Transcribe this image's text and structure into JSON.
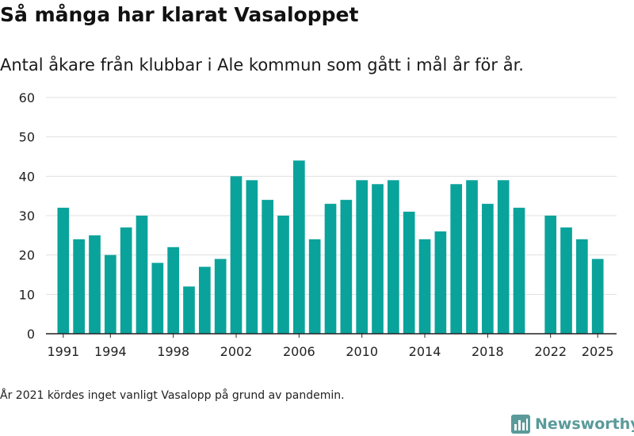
{
  "title": "Så många har klarat Vasaloppet",
  "subtitle": "Antal åkare från klubbar i Ale kommun som gått i mål år för år.",
  "footnote": "År 2021 kördes inget vanligt Vasalopp på grund av pandemin.",
  "brand": {
    "name": "Newsworthy",
    "icon": "newsworthy-logo-icon"
  },
  "colors": {
    "bar": "#0aa39b",
    "grid": "#e0e0e0",
    "axis": "#222222",
    "brand": "#5a9a9a"
  },
  "chart_data": {
    "type": "bar",
    "title": "Så många har klarat Vasaloppet",
    "subtitle": "Antal åkare från klubbar i Ale kommun som gått i mål år för år.",
    "xlabel": "",
    "ylabel": "",
    "ylim": [
      0,
      60
    ],
    "yticks": [
      0,
      10,
      20,
      30,
      40,
      50,
      60
    ],
    "xticks": [
      1991,
      1994,
      1998,
      2002,
      2006,
      2010,
      2014,
      2018,
      2022,
      2025
    ],
    "xlim": [
      1989.9,
      2026.2
    ],
    "grid": true,
    "categories": [
      1991,
      1992,
      1993,
      1994,
      1995,
      1996,
      1997,
      1998,
      1999,
      2000,
      2001,
      2002,
      2003,
      2004,
      2005,
      2006,
      2007,
      2008,
      2009,
      2010,
      2011,
      2012,
      2013,
      2014,
      2015,
      2016,
      2017,
      2018,
      2019,
      2020,
      2021,
      2022,
      2023,
      2024,
      2025
    ],
    "values": [
      32,
      24,
      25,
      20,
      27,
      30,
      18,
      22,
      12,
      17,
      19,
      40,
      39,
      34,
      30,
      44,
      24,
      33,
      34,
      39,
      38,
      39,
      31,
      24,
      26,
      38,
      39,
      33,
      39,
      32,
      null,
      30,
      27,
      24,
      19
    ]
  }
}
